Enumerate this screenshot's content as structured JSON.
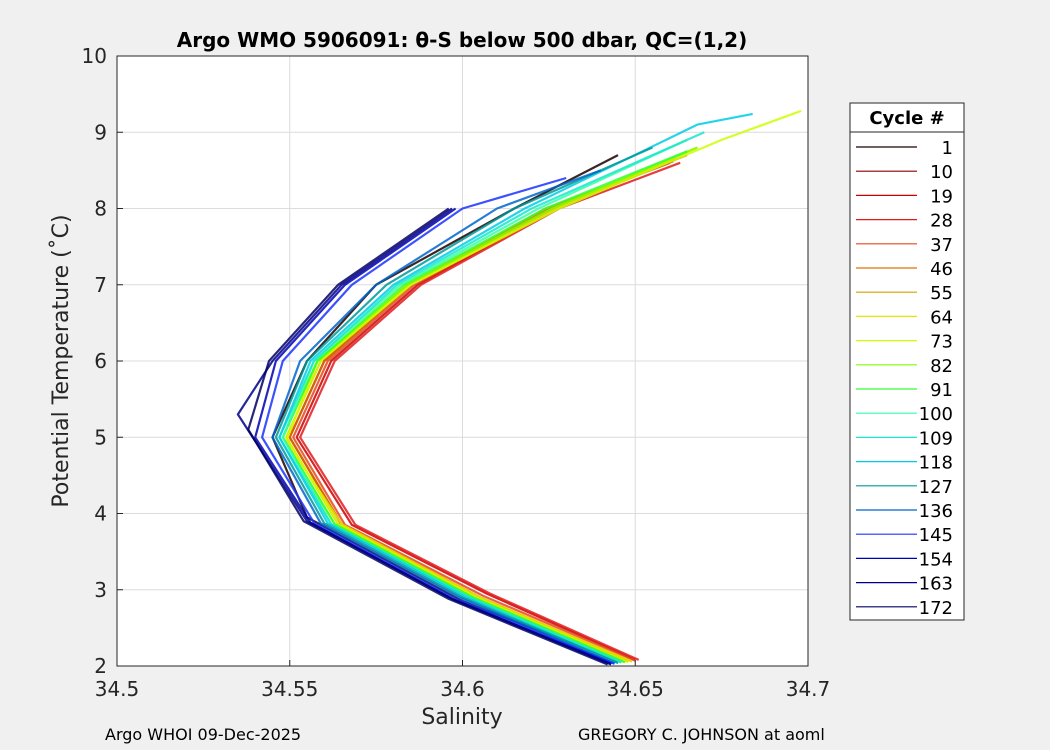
{
  "chart_data": {
    "type": "line",
    "title": "Argo WMO 5906091: θ-S below 500 dbar,  QC=(1,2)",
    "xlabel": "Salinity",
    "ylabel": "Potential Temperature (˚C)",
    "xlim": [
      34.5,
      34.7
    ],
    "ylim": [
      2,
      10
    ],
    "xticks": [
      34.5,
      34.55,
      34.6,
      34.65,
      34.7
    ],
    "xtick_labels": [
      "34.5",
      "34.55",
      "34.6",
      "34.65",
      "34.7"
    ],
    "yticks": [
      2,
      3,
      4,
      5,
      6,
      7,
      8,
      9,
      10
    ],
    "ytick_labels": [
      "2",
      "3",
      "4",
      "5",
      "6",
      "7",
      "8",
      "9",
      "10"
    ],
    "grid": true,
    "legend_title": "Cycle #",
    "legend_position": "right",
    "series": [
      {
        "name": "1",
        "color": "#1a0000",
        "values": [
          [
            34.646,
            2.05
          ],
          [
            34.6,
            2.85
          ],
          [
            34.555,
            3.95
          ],
          [
            34.545,
            5.0
          ],
          [
            34.555,
            6.0
          ],
          [
            34.575,
            7.0
          ],
          [
            34.615,
            8.0
          ],
          [
            34.645,
            8.7
          ]
        ]
      },
      {
        "name": "10",
        "color": "#8b0000",
        "values": [
          [
            34.648,
            2.07
          ],
          [
            34.605,
            2.9
          ],
          [
            34.565,
            3.85
          ],
          [
            34.55,
            5.0
          ],
          [
            34.56,
            6.0
          ],
          [
            34.585,
            7.0
          ],
          [
            34.625,
            8.0
          ],
          [
            34.66,
            8.6
          ]
        ]
      },
      {
        "name": "19",
        "color": "#cc0000",
        "values": [
          [
            34.65,
            2.08
          ],
          [
            34.607,
            2.95
          ],
          [
            34.568,
            3.85
          ],
          [
            34.552,
            5.0
          ],
          [
            34.562,
            6.0
          ],
          [
            34.587,
            7.0
          ],
          [
            34.627,
            8.0
          ],
          [
            34.662,
            8.65
          ]
        ]
      },
      {
        "name": "28",
        "color": "#e31a1c",
        "values": [
          [
            34.651,
            2.08
          ],
          [
            34.608,
            2.95
          ],
          [
            34.569,
            3.85
          ],
          [
            34.553,
            5.0
          ],
          [
            34.563,
            6.0
          ],
          [
            34.588,
            7.0
          ],
          [
            34.628,
            8.0
          ],
          [
            34.663,
            8.6
          ]
        ]
      },
      {
        "name": "37",
        "color": "#e8481a",
        "values": [
          [
            34.65,
            2.07
          ],
          [
            34.606,
            2.92
          ],
          [
            34.566,
            3.85
          ],
          [
            34.551,
            5.0
          ],
          [
            34.561,
            6.0
          ],
          [
            34.586,
            7.0
          ],
          [
            34.626,
            8.0
          ],
          [
            34.661,
            8.62
          ]
        ]
      },
      {
        "name": "46",
        "color": "#e07000",
        "values": [
          [
            34.649,
            2.06
          ],
          [
            34.605,
            2.9
          ],
          [
            34.565,
            3.86
          ],
          [
            34.55,
            5.0
          ],
          [
            34.56,
            6.0
          ],
          [
            34.585,
            7.0
          ],
          [
            34.624,
            8.0
          ],
          [
            34.66,
            8.6
          ]
        ]
      },
      {
        "name": "55",
        "color": "#d4a000",
        "values": [
          [
            34.648,
            2.06
          ],
          [
            34.604,
            2.9
          ],
          [
            34.564,
            3.86
          ],
          [
            34.549,
            5.0
          ],
          [
            34.559,
            6.0
          ],
          [
            34.584,
            7.0
          ],
          [
            34.625,
            8.0
          ],
          [
            34.665,
            8.7
          ]
        ]
      },
      {
        "name": "64",
        "color": "#e6e600",
        "values": [
          [
            34.649,
            2.06
          ],
          [
            34.605,
            2.9
          ],
          [
            34.565,
            3.86
          ],
          [
            34.549,
            4.95
          ],
          [
            34.558,
            6.0
          ],
          [
            34.585,
            7.0
          ],
          [
            34.627,
            8.0
          ],
          [
            34.668,
            8.8
          ]
        ]
      },
      {
        "name": "73",
        "color": "#ccff00",
        "values": [
          [
            34.648,
            2.05
          ],
          [
            34.604,
            2.9
          ],
          [
            34.564,
            3.86
          ],
          [
            34.549,
            5.0
          ],
          [
            34.559,
            6.0
          ],
          [
            34.585,
            7.0
          ],
          [
            34.628,
            8.0
          ],
          [
            34.675,
            8.9
          ],
          [
            34.698,
            9.28
          ]
        ]
      },
      {
        "name": "82",
        "color": "#80ff00",
        "values": [
          [
            34.647,
            2.05
          ],
          [
            34.603,
            2.9
          ],
          [
            34.563,
            3.86
          ],
          [
            34.548,
            5.0
          ],
          [
            34.558,
            6.0
          ],
          [
            34.584,
            7.0
          ],
          [
            34.626,
            8.0
          ],
          [
            34.668,
            8.8
          ]
        ]
      },
      {
        "name": "91",
        "color": "#33ff33",
        "values": [
          [
            34.647,
            2.05
          ],
          [
            34.603,
            2.9
          ],
          [
            34.563,
            3.86
          ],
          [
            34.548,
            5.0
          ],
          [
            34.558,
            6.0
          ],
          [
            34.583,
            7.0
          ],
          [
            34.624,
            8.0
          ],
          [
            34.665,
            8.75
          ]
        ]
      },
      {
        "name": "100",
        "color": "#33ffaa",
        "values": [
          [
            34.646,
            2.05
          ],
          [
            34.602,
            2.9
          ],
          [
            34.562,
            3.86
          ],
          [
            34.548,
            5.0
          ],
          [
            34.557,
            6.0
          ],
          [
            34.582,
            7.0
          ],
          [
            34.622,
            8.0
          ],
          [
            34.665,
            8.9
          ]
        ]
      },
      {
        "name": "109",
        "color": "#1ae6cc",
        "values": [
          [
            34.646,
            2.05
          ],
          [
            34.602,
            2.9
          ],
          [
            34.562,
            3.86
          ],
          [
            34.547,
            5.0
          ],
          [
            34.557,
            6.0
          ],
          [
            34.581,
            7.0
          ],
          [
            34.62,
            8.0
          ],
          [
            34.67,
            9.0
          ]
        ]
      },
      {
        "name": "118",
        "color": "#00cce6",
        "values": [
          [
            34.645,
            2.04
          ],
          [
            34.601,
            2.9
          ],
          [
            34.561,
            3.87
          ],
          [
            34.547,
            5.0
          ],
          [
            34.556,
            6.0
          ],
          [
            34.58,
            7.0
          ],
          [
            34.618,
            8.0
          ],
          [
            34.668,
            9.1
          ],
          [
            34.684,
            9.24
          ]
        ]
      },
      {
        "name": "127",
        "color": "#009999",
        "values": [
          [
            34.645,
            2.04
          ],
          [
            34.6,
            2.9
          ],
          [
            34.56,
            3.87
          ],
          [
            34.546,
            5.0
          ],
          [
            34.555,
            6.0
          ],
          [
            34.578,
            7.0
          ],
          [
            34.615,
            8.0
          ],
          [
            34.655,
            8.8
          ]
        ]
      },
      {
        "name": "136",
        "color": "#0066cc",
        "values": [
          [
            34.644,
            2.03
          ],
          [
            34.599,
            2.9
          ],
          [
            34.559,
            3.87
          ],
          [
            34.545,
            5.0
          ],
          [
            34.553,
            6.0
          ],
          [
            34.575,
            7.0
          ],
          [
            34.61,
            8.0
          ],
          [
            34.64,
            8.5
          ]
        ]
      },
      {
        "name": "145",
        "color": "#1a33ff",
        "values": [
          [
            34.644,
            2.03
          ],
          [
            34.598,
            2.88
          ],
          [
            34.557,
            3.88
          ],
          [
            34.542,
            5.0
          ],
          [
            34.548,
            6.0
          ],
          [
            34.568,
            7.0
          ],
          [
            34.6,
            8.0
          ],
          [
            34.63,
            8.4
          ]
        ]
      },
      {
        "name": "154",
        "color": "#0000b3",
        "values": [
          [
            34.643,
            2.03
          ],
          [
            34.597,
            2.88
          ],
          [
            34.556,
            3.88
          ],
          [
            34.54,
            5.0
          ],
          [
            34.546,
            6.0
          ],
          [
            34.566,
            7.0
          ],
          [
            34.598,
            8.0
          ]
        ]
      },
      {
        "name": "163",
        "color": "#00008b",
        "values": [
          [
            34.643,
            2.02
          ],
          [
            34.597,
            2.88
          ],
          [
            34.555,
            3.9
          ],
          [
            34.535,
            5.3
          ],
          [
            34.545,
            6.0
          ],
          [
            34.565,
            7.0
          ],
          [
            34.597,
            8.0
          ]
        ]
      },
      {
        "name": "172",
        "color": "#000066",
        "values": [
          [
            34.642,
            2.02
          ],
          [
            34.596,
            2.88
          ],
          [
            34.554,
            3.9
          ],
          [
            34.538,
            5.1
          ],
          [
            34.544,
            6.0
          ],
          [
            34.564,
            7.0
          ],
          [
            34.596,
            8.0
          ]
        ]
      }
    ]
  },
  "footer": {
    "left": "Argo WHOI 09-Dec-2025",
    "right": "GREGORY C. JOHNSON at aoml"
  }
}
